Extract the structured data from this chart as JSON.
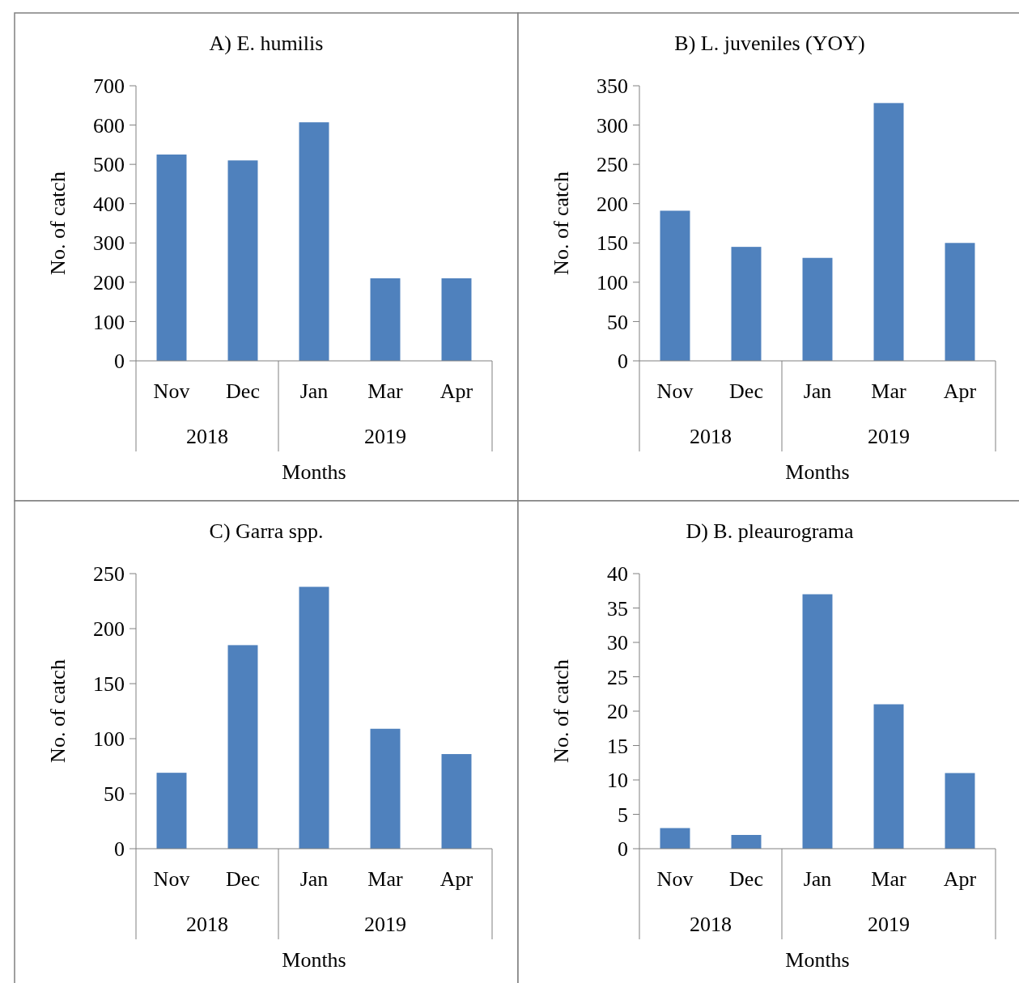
{
  "chart_data": [
    {
      "type": "bar",
      "title": "A) E. humilis",
      "xlabel": "Months",
      "ylabel": "No. of catch",
      "categories": [
        "Nov",
        "Dec",
        "Jan",
        "Mar",
        "Apr"
      ],
      "values": [
        525,
        510,
        607,
        210,
        210
      ],
      "color": "#4f81bd",
      "ylim": [
        0,
        700
      ],
      "yticks": [
        0,
        100,
        200,
        300,
        400,
        500,
        600,
        700
      ],
      "grid": false,
      "annotations": [
        "2018",
        "2019"
      ]
    },
    {
      "type": "bar",
      "title": "B) L. juveniles (YOY)",
      "xlabel": "Months",
      "ylabel": "No. of catch",
      "categories": [
        "Nov",
        "Dec",
        "Jan",
        "Mar",
        "Apr"
      ],
      "values": [
        191,
        145,
        131,
        328,
        150
      ],
      "color": "#4f81bd",
      "ylim": [
        0,
        350
      ],
      "yticks": [
        0,
        50,
        100,
        150,
        200,
        250,
        300,
        350
      ],
      "grid": false,
      "annotations": [
        "2018",
        "2019"
      ]
    },
    {
      "type": "bar",
      "title": "C) Garra spp.",
      "xlabel": "Months",
      "ylabel": "No. of catch",
      "categories": [
        "Nov",
        "Dec",
        "Jan",
        "Mar",
        "Apr"
      ],
      "values": [
        69,
        185,
        238,
        109,
        86
      ],
      "color": "#4f81bd",
      "ylim": [
        0,
        250
      ],
      "yticks": [
        0,
        50,
        100,
        150,
        200,
        250
      ],
      "grid": false,
      "annotations": [
        "2018",
        "2019"
      ]
    },
    {
      "type": "bar",
      "title": "D) B. pleaurograma",
      "xlabel": "Months",
      "ylabel": "No. of catch",
      "categories": [
        "Nov",
        "Dec",
        "Jan",
        "Mar",
        "Apr"
      ],
      "values": [
        3,
        2,
        37,
        21,
        11
      ],
      "color": "#4f81bd",
      "ylim": [
        0,
        40
      ],
      "yticks": [
        0,
        5,
        10,
        15,
        20,
        25,
        30,
        35,
        40
      ],
      "grid": false,
      "annotations": [
        "2018",
        "2019"
      ]
    }
  ]
}
